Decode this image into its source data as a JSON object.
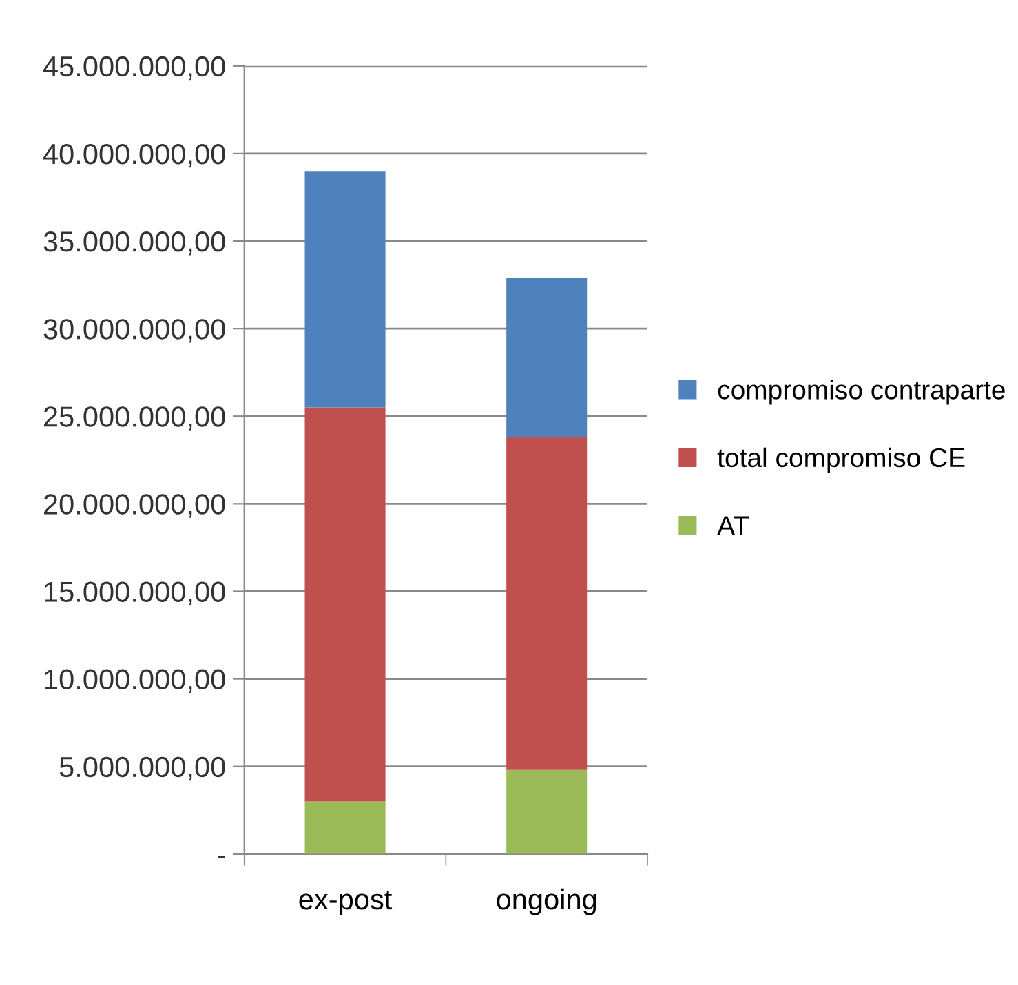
{
  "chart_data": {
    "type": "bar",
    "stacked": true,
    "categories": [
      "ex-post",
      "ongoing"
    ],
    "series": [
      {
        "name": "AT",
        "color": "#9bbb59",
        "values": [
          3000000,
          4800000
        ]
      },
      {
        "name": "total compromiso CE",
        "color": "#c0504d",
        "values": [
          22500000,
          19000000
        ]
      },
      {
        "name": "compromiso contraparte",
        "color": "#4f81bd",
        "values": [
          13500000,
          9100000
        ]
      }
    ],
    "ylim": [
      0,
      45000000
    ],
    "yticks": [
      {
        "value": 0,
        "label": "-"
      },
      {
        "value": 5000000,
        "label": "5.000.000,00"
      },
      {
        "value": 10000000,
        "label": "10.000.000,00"
      },
      {
        "value": 15000000,
        "label": "15.000.000,00"
      },
      {
        "value": 20000000,
        "label": "20.000.000,00"
      },
      {
        "value": 25000000,
        "label": "25.000.000,00"
      },
      {
        "value": 30000000,
        "label": "30.000.000,00"
      },
      {
        "value": 35000000,
        "label": "35.000.000,00"
      },
      {
        "value": 40000000,
        "label": "40.000.000,00"
      },
      {
        "value": 45000000,
        "label": "45.000.000,00"
      }
    ],
    "grid": "y",
    "legend": "right"
  }
}
